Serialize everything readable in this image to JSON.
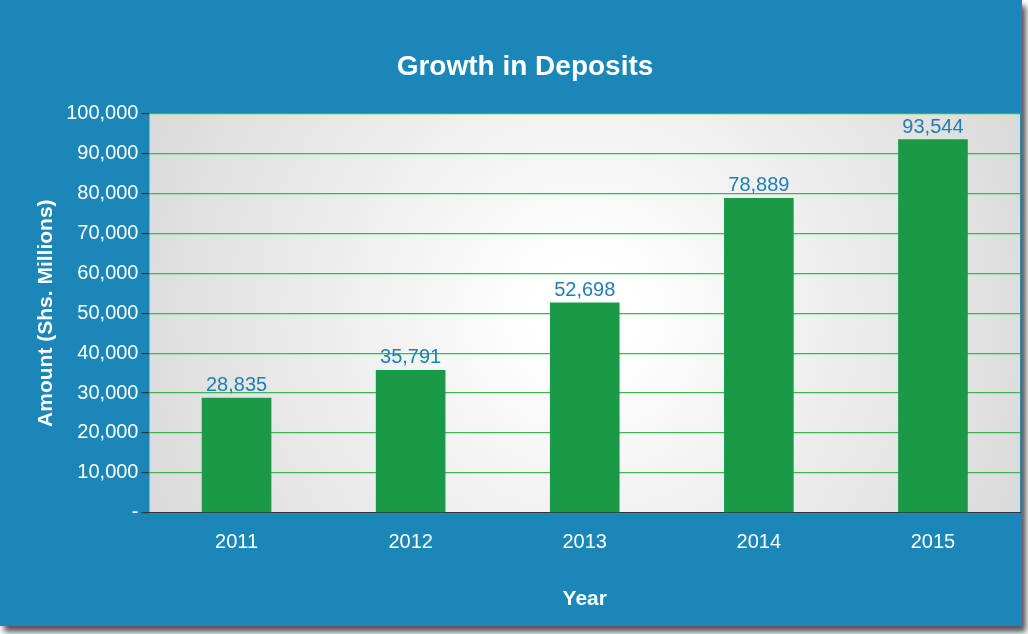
{
  "chart_data": {
    "type": "bar",
    "title": "Growth in Deposits",
    "xlabel": "Year",
    "ylabel": "Amount (Shs. Millions)",
    "categories": [
      "2011",
      "2012",
      "2013",
      "2014",
      "2015"
    ],
    "values": [
      28835,
      35791,
      52698,
      78889,
      93544
    ],
    "value_labels": [
      "28,835",
      "35,791",
      "52,698",
      "78,889",
      "93,544"
    ],
    "color": "#1a9a46",
    "ylim": [
      0,
      100000
    ],
    "yticks": [
      {
        "value": 0,
        "label": "-"
      },
      {
        "value": 10000,
        "label": "10,000"
      },
      {
        "value": 20000,
        "label": "20,000"
      },
      {
        "value": 30000,
        "label": "30,000"
      },
      {
        "value": 40000,
        "label": "40,000"
      },
      {
        "value": 50000,
        "label": "50,000"
      },
      {
        "value": 60000,
        "label": "60,000"
      },
      {
        "value": 70000,
        "label": "70,000"
      },
      {
        "value": 80000,
        "label": "80,000"
      },
      {
        "value": 90000,
        "label": "90,000"
      },
      {
        "value": 100000,
        "label": "100,000"
      }
    ],
    "grid": "y",
    "legend": false
  }
}
